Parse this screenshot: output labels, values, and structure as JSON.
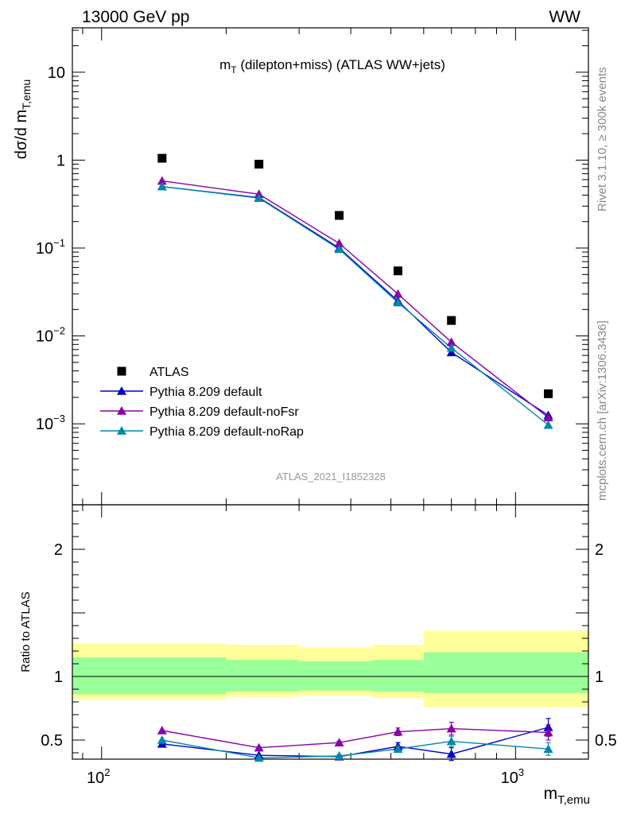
{
  "header": {
    "energy_label": "13000 GeV pp",
    "process_label": "WW"
  },
  "side_labels": {
    "rivet": "Rivet 3.1.10, ≥ 300k events",
    "mcplots": "mcplots.cern.ch [arXiv:1306.3436]"
  },
  "analysis_id": "ATLAS_2021_I1852328",
  "chart_data": [
    {
      "name": "main",
      "type": "scatter",
      "title": "m_T (dilepton+miss) (ATLAS WW+jets)",
      "title_main": "m",
      "title_sub": "T",
      "title_rest": " (dilepton+miss) (ATLAS WW+jets)",
      "ylabel": "dσ/d m",
      "ylabel_sub": "T,emu",
      "xscale": "log",
      "yscale": "log",
      "xlim": [
        85,
        1500
      ],
      "ylim": [
        0.00012,
        32
      ],
      "y_tick_labels": [
        {
          "value": 10,
          "label": "10"
        },
        {
          "value": 1,
          "label": "1"
        },
        {
          "value": 0.1,
          "label": "10",
          "exp": "−1"
        },
        {
          "value": 0.01,
          "label": "10",
          "exp": "−2"
        },
        {
          "value": 0.001,
          "label": "10",
          "exp": "−3"
        }
      ],
      "x": [
        140,
        240,
        375,
        520,
        700,
        1200
      ],
      "data": {
        "name": "ATLAS",
        "color": "#000000",
        "values": [
          1.05,
          0.9,
          0.235,
          0.055,
          0.015,
          0.0022
        ]
      },
      "series": [
        {
          "name": "Pythia 8.209 default",
          "color": "#0000cc",
          "values": [
            0.5,
            0.375,
            0.1,
            0.025,
            0.0065,
            0.00125
          ]
        },
        {
          "name": "Pythia 8.209 default-noFsr",
          "color": "#8800aa",
          "values": [
            0.58,
            0.41,
            0.113,
            0.03,
            0.0085,
            0.00118
          ]
        },
        {
          "name": "Pythia 8.209 default-noRap",
          "color": "#0088aa",
          "values": [
            0.5,
            0.37,
            0.097,
            0.024,
            0.0073,
            0.00097
          ]
        }
      ],
      "legend_position": "bottom-left"
    },
    {
      "name": "ratio",
      "type": "line",
      "ylabel": "Ratio to ATLAS",
      "xlabel": "m",
      "xlabel_sub": "T,emu",
      "xscale": "log",
      "xlim": [
        85,
        1500
      ],
      "ylim": [
        0.35,
        2.35
      ],
      "y_tick_labels": [
        {
          "value": 2,
          "label": "2"
        },
        {
          "value": 1,
          "label": "1"
        },
        {
          "value": 0.5,
          "label": "0.5"
        }
      ],
      "x_tick_labels": [
        {
          "value": 100,
          "label": "10",
          "exp": "2"
        },
        {
          "value": 1000,
          "label": "10",
          "exp": "3"
        }
      ],
      "bins": [
        {
          "lo": 85,
          "hi": 200,
          "stat": [
            0.86,
            1.15
          ],
          "total": [
            0.82,
            1.26
          ]
        },
        {
          "lo": 200,
          "hi": 300,
          "stat": [
            0.88,
            1.13
          ],
          "total": [
            0.84,
            1.25
          ]
        },
        {
          "lo": 300,
          "hi": 450,
          "stat": [
            0.89,
            1.12
          ],
          "total": [
            0.85,
            1.23
          ]
        },
        {
          "lo": 450,
          "hi": 600,
          "stat": [
            0.88,
            1.13
          ],
          "total": [
            0.83,
            1.25
          ]
        },
        {
          "lo": 600,
          "hi": 1500,
          "stat": [
            0.87,
            1.19
          ],
          "total": [
            0.76,
            1.36
          ]
        }
      ],
      "x": [
        140,
        240,
        375,
        520,
        700,
        1200
      ],
      "series": [
        {
          "name": "Pythia 8.209 default",
          "color": "#0000cc",
          "values": [
            0.47,
            0.38,
            0.37,
            0.45,
            0.39,
            0.6
          ],
          "errors": [
            0.005,
            0.005,
            0.01,
            0.03,
            0.05,
            0.07
          ]
        },
        {
          "name": "Pythia 8.209 default-noFsr",
          "color": "#8800aa",
          "values": [
            0.575,
            0.44,
            0.48,
            0.565,
            0.59,
            0.56
          ],
          "errors": [
            0.005,
            0.005,
            0.01,
            0.03,
            0.05,
            0.06
          ]
        },
        {
          "name": "Pythia 8.209 default-noRap",
          "color": "#0088aa",
          "values": [
            0.5,
            0.36,
            0.375,
            0.43,
            0.49,
            0.43
          ],
          "errors": [
            0.005,
            0.005,
            0.01,
            0.02,
            0.04,
            0.05
          ]
        }
      ]
    }
  ]
}
